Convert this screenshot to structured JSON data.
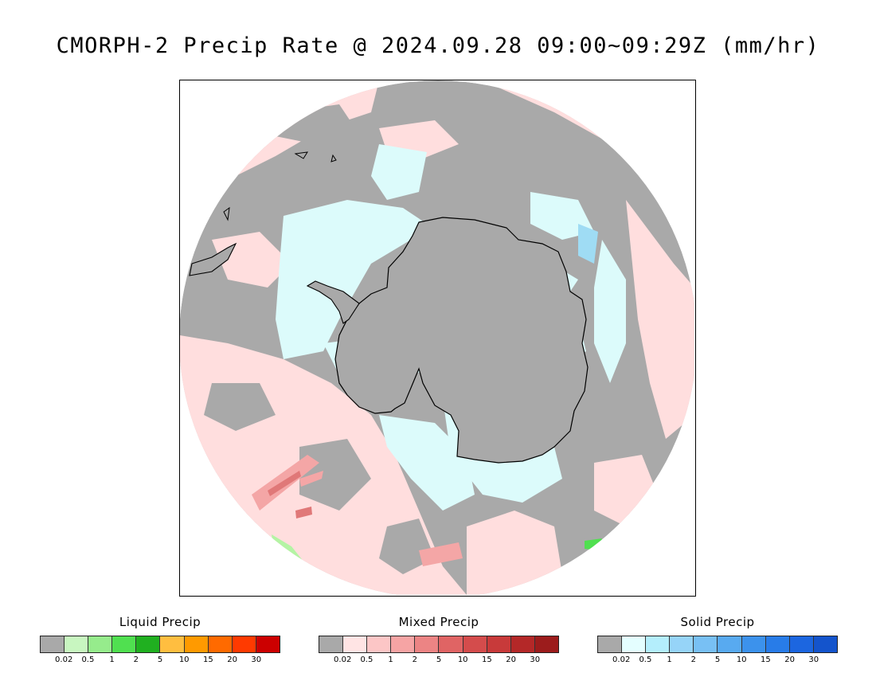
{
  "title": "CMORPH-2 Precip Rate @ 2024.09.28 09:00~09:29Z (mm/hr)",
  "map": {
    "projection": "south-polar-stereographic",
    "colors": {
      "no_data_gray": "#a9a9a9",
      "mixed_light": "#ffdede",
      "solid_light": "#dcfbfb",
      "mixed_med": "#f4a6a6",
      "mixed_strong": "#e07878",
      "solid_med": "#9fdcf4",
      "liquid_light": "#b4f4a4",
      "coast": "#000000",
      "background": "#ffffff"
    }
  },
  "legends": [
    {
      "title": "Liquid Precip",
      "colors": [
        "#a9a9a9",
        "#c8f6c0",
        "#96ec8c",
        "#50e050",
        "#20b020",
        "#ffbe40",
        "#ff9a00",
        "#ff6a00",
        "#ff3a00",
        "#cc0000"
      ],
      "tick_labels": [
        "0.02",
        "0.5",
        "1",
        "2",
        "5",
        "10",
        "15",
        "20",
        "30"
      ]
    },
    {
      "title": "Mixed Precip",
      "colors": [
        "#a9a9a9",
        "#ffe4e4",
        "#fcc6c6",
        "#f6a4a4",
        "#ec8484",
        "#e06464",
        "#d44c4c",
        "#c83a3a",
        "#b42828",
        "#9c1c1c"
      ],
      "tick_labels": [
        "0.02",
        "0.5",
        "1",
        "2",
        "5",
        "10",
        "15",
        "20",
        "30"
      ]
    },
    {
      "title": "Solid Precip",
      "colors": [
        "#a9a9a9",
        "#e4feff",
        "#b4eefc",
        "#96d4f8",
        "#78c0f4",
        "#58aaf0",
        "#3c92ec",
        "#287ce8",
        "#1c66e0",
        "#1454cc"
      ],
      "tick_labels": [
        "0.02",
        "0.5",
        "1",
        "2",
        "5",
        "10",
        "15",
        "20",
        "30"
      ]
    }
  ]
}
